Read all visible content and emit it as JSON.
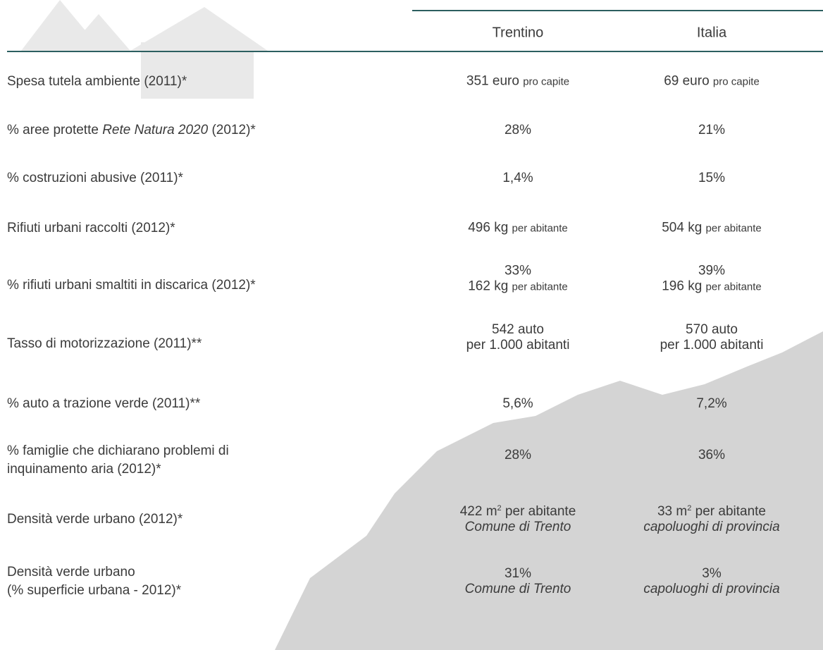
{
  "table": {
    "columns": [
      "Trentino",
      "Italia"
    ],
    "rows": [
      {
        "label": "Spesa tutela ambiente (2011)*",
        "cells": [
          [
            "351 euro",
            "pro capite"
          ],
          [
            "69 euro",
            "pro capite"
          ]
        ]
      },
      {
        "label": [
          "% aree protette",
          "Rete Natura 2020",
          "(2012)*"
        ],
        "cells": [
          "28%",
          "21%"
        ]
      },
      {
        "label": "% costruzioni abusive (2011)*",
        "cells": [
          "1,4%",
          "15%"
        ]
      },
      {
        "label": "Rifiuti urbani raccolti (2012)*",
        "cells": [
          [
            "496 kg",
            "per abitante"
          ],
          [
            "504 kg",
            "per abitante"
          ]
        ]
      },
      {
        "label": "% rifiuti urbani smaltiti in discarica (2012)*",
        "cells": [
          [
            "33%",
            "162 kg",
            "per abitante"
          ],
          [
            "39%",
            "196 kg",
            "per abitante"
          ]
        ]
      },
      {
        "label": "Tasso di motorizzazione (2011)**",
        "cells": [
          [
            "542 auto",
            "per 1.000 abitanti"
          ],
          [
            "570 auto",
            "per 1.000 abitanti"
          ]
        ]
      },
      {
        "label": "% auto a trazione verde (2011)**",
        "cells": [
          "5,6%",
          "7,2%"
        ]
      },
      {
        "label": [
          "% famiglie che dichiarano problemi di",
          "inquinamento aria (2012)*"
        ],
        "cells": [
          "28%",
          "36%"
        ]
      },
      {
        "label": "Densità verde urbano (2012)*",
        "cells": [
          [
            "422 m",
            "2",
            "per abitante",
            "Comune di Trento"
          ],
          [
            "33 m",
            "2",
            "per abitante",
            "capoluoghi di provincia"
          ]
        ]
      },
      {
        "label": [
          "Densità verde urbano",
          "(% superficie urbana - 2012)*"
        ],
        "cells": [
          [
            "31%",
            "Comune di Trento"
          ],
          [
            "3%",
            "capoluoghi di provincia"
          ]
        ]
      }
    ]
  }
}
